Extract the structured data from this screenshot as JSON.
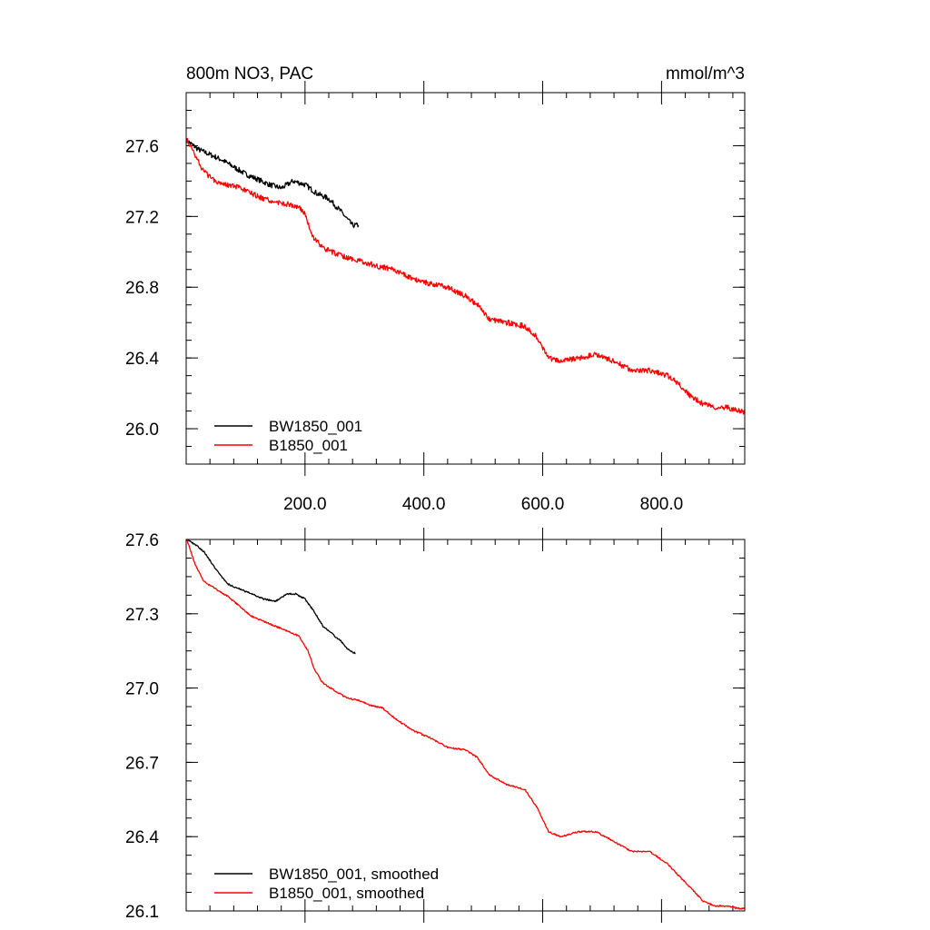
{
  "chart_data": [
    {
      "type": "line",
      "title": "800m NO3, PAC",
      "units": "mmol/m^3",
      "xlim": [
        0,
        940
      ],
      "ylim": [
        25.8,
        27.9
      ],
      "xticks": [
        200,
        400,
        600,
        800
      ],
      "xtick_labels": [
        "200.0",
        "400.0",
        "600.0",
        "800.0"
      ],
      "yticks": [
        26.0,
        26.4,
        26.8,
        27.2,
        27.6
      ],
      "ytick_labels": [
        "26.0",
        "26.4",
        "26.8",
        "27.2",
        "27.6"
      ],
      "grid": false,
      "legend_placement": "bottom-left",
      "series": [
        {
          "name": "BW1850_001",
          "color": "#000000",
          "x": [
            1,
            20,
            40,
            60,
            80,
            100,
            120,
            140,
            160,
            180,
            200,
            220,
            240,
            260,
            270,
            280,
            290
          ],
          "y": [
            27.63,
            27.58,
            27.55,
            27.52,
            27.48,
            27.44,
            27.41,
            27.38,
            27.36,
            27.4,
            27.38,
            27.33,
            27.3,
            27.23,
            27.19,
            27.15,
            27.15
          ]
        },
        {
          "name": "B1850_001",
          "color": "#ff0000",
          "x": [
            1,
            15,
            30,
            50,
            70,
            90,
            110,
            130,
            150,
            170,
            190,
            200,
            210,
            230,
            260,
            290,
            320,
            350,
            380,
            410,
            440,
            470,
            490,
            510,
            540,
            570,
            590,
            610,
            630,
            660,
            690,
            720,
            750,
            780,
            810,
            830,
            850,
            870,
            890,
            910,
            930,
            940
          ],
          "y": [
            27.63,
            27.55,
            27.45,
            27.4,
            27.38,
            27.36,
            27.33,
            27.3,
            27.28,
            27.27,
            27.25,
            27.22,
            27.1,
            27.02,
            26.98,
            26.95,
            26.92,
            26.9,
            26.85,
            26.82,
            26.8,
            26.75,
            26.7,
            26.62,
            26.6,
            26.58,
            26.52,
            26.4,
            26.38,
            26.4,
            26.42,
            26.38,
            26.33,
            26.33,
            26.3,
            26.25,
            26.18,
            26.14,
            26.12,
            26.12,
            26.1,
            26.09
          ]
        }
      ]
    },
    {
      "type": "line",
      "title": "",
      "xlim": [
        0,
        940
      ],
      "ylim": [
        26.1,
        27.6
      ],
      "xticks": [
        200,
        400,
        600,
        800
      ],
      "xtick_labels": [],
      "yticks": [
        26.1,
        26.4,
        26.7,
        27.0,
        27.3,
        27.6
      ],
      "ytick_labels": [
        "26.1",
        "26.4",
        "26.7",
        "27.0",
        "27.3",
        "27.6"
      ],
      "grid": false,
      "legend_placement": "bottom-left",
      "series": [
        {
          "name": "BW1850_001, smoothed",
          "color": "#000000",
          "x": [
            1,
            15,
            30,
            50,
            70,
            90,
            110,
            130,
            150,
            170,
            185,
            200,
            215,
            230,
            245,
            260,
            275,
            285
          ],
          "y": [
            27.6,
            27.58,
            27.55,
            27.48,
            27.42,
            27.4,
            27.38,
            27.36,
            27.35,
            27.38,
            27.38,
            27.36,
            27.31,
            27.25,
            27.22,
            27.19,
            27.15,
            27.14
          ]
        },
        {
          "name": "B1850_001, smoothed",
          "color": "#ff0000",
          "x": [
            1,
            15,
            30,
            50,
            70,
            90,
            110,
            130,
            150,
            170,
            190,
            205,
            215,
            230,
            250,
            270,
            290,
            310,
            330,
            350,
            380,
            410,
            440,
            470,
            490,
            510,
            540,
            570,
            590,
            610,
            630,
            660,
            690,
            720,
            750,
            780,
            810,
            830,
            850,
            870,
            890,
            910,
            930,
            940
          ],
          "y": [
            27.6,
            27.5,
            27.43,
            27.4,
            27.37,
            27.33,
            27.29,
            27.27,
            27.25,
            27.23,
            27.21,
            27.15,
            27.08,
            27.02,
            26.99,
            26.96,
            26.95,
            26.93,
            26.92,
            26.88,
            26.83,
            26.8,
            26.76,
            26.75,
            26.72,
            26.65,
            26.61,
            26.59,
            26.52,
            26.42,
            26.4,
            26.42,
            26.42,
            26.38,
            26.34,
            26.34,
            26.29,
            26.24,
            26.19,
            26.14,
            26.12,
            26.12,
            26.11,
            26.11
          ]
        }
      ]
    }
  ]
}
